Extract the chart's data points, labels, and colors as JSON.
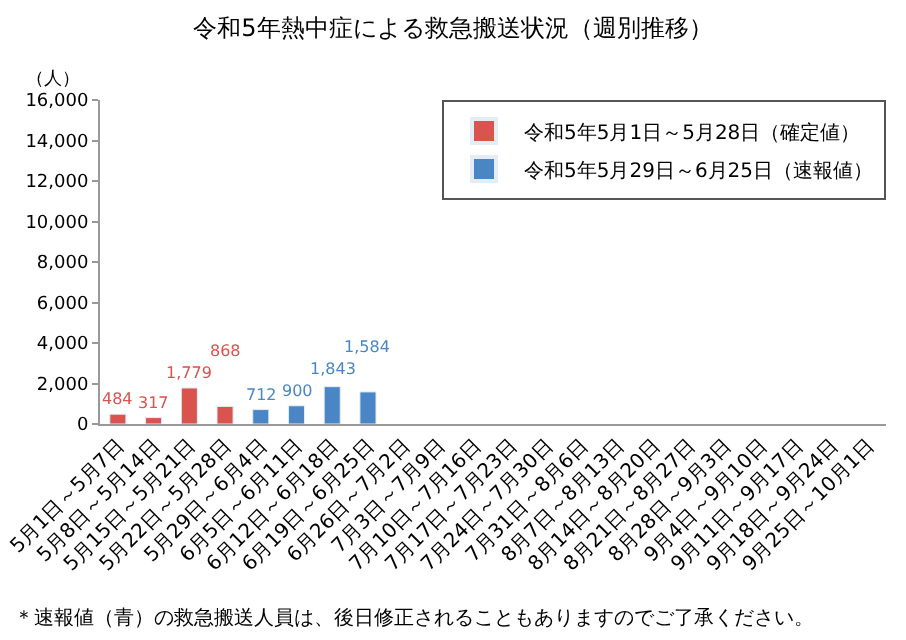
{
  "chart_data": {
    "type": "bar",
    "title": "令和5年熱中症による救急搬送状況（週別推移）",
    "ylabel": "（人）",
    "categories": [
      "5月1日～5月7日",
      "5月8日～5月14日",
      "5月15日～5月21日",
      "5月22日～5月28日",
      "5月29日～6月4日",
      "6月5日～6月11日",
      "6月12日～6月18日",
      "6月19日～6月25日",
      "6月26日～7月2日",
      "7月3日～7月9日",
      "7月10日～7月16日",
      "7月17日～7月23日",
      "7月24日～7月30日",
      "7月31日～8月6日",
      "8月7日～8月13日",
      "8月14日～8月20日",
      "8月21日～8月27日",
      "8月28日～9月3日",
      "9月4日～9月10日",
      "9月11日～9月17日",
      "9月18日～9月24日",
      "9月25日～10月1日"
    ],
    "series": [
      {
        "name": "令和5年5月1日～5月28日（確定値）",
        "color": "#d9534f",
        "values": [
          484,
          317,
          1779,
          868,
          null,
          null,
          null,
          null,
          null,
          null,
          null,
          null,
          null,
          null,
          null,
          null,
          null,
          null,
          null,
          null,
          null,
          null
        ],
        "value_labels": [
          "484",
          "317",
          "1,779",
          "868",
          null,
          null,
          null,
          null,
          null,
          null,
          null,
          null,
          null,
          null,
          null,
          null,
          null,
          null,
          null,
          null,
          null,
          null
        ]
      },
      {
        "name": "令和5年5月29日～6月25日（速報値）",
        "color": "#4a86c5",
        "values": [
          null,
          null,
          null,
          null,
          712,
          900,
          1843,
          1584,
          null,
          null,
          null,
          null,
          null,
          null,
          null,
          null,
          null,
          null,
          null,
          null,
          null,
          null
        ],
        "value_labels": [
          null,
          null,
          null,
          null,
          "712",
          "900",
          "1,843",
          "1,584",
          null,
          null,
          null,
          null,
          null,
          null,
          null,
          null,
          null,
          null,
          null,
          null,
          null,
          null
        ]
      }
    ],
    "ylim": [
      0,
      16000
    ],
    "yticks": [
      {
        "value": 0,
        "label": "0"
      },
      {
        "value": 2000,
        "label": "2,000"
      },
      {
        "value": 4000,
        "label": "4,000"
      },
      {
        "value": 6000,
        "label": "6,000"
      },
      {
        "value": 8000,
        "label": "8,000"
      },
      {
        "value": 10000,
        "label": "10,000"
      },
      {
        "value": 12000,
        "label": "12,000"
      },
      {
        "value": 14000,
        "label": "14,000"
      },
      {
        "value": 16000,
        "label": "16,000"
      }
    ],
    "legend": "top right",
    "annotations": [
      "＊速報値（青）の救急搬送人員は、後日修正されることもありますのでご了承ください。"
    ]
  }
}
